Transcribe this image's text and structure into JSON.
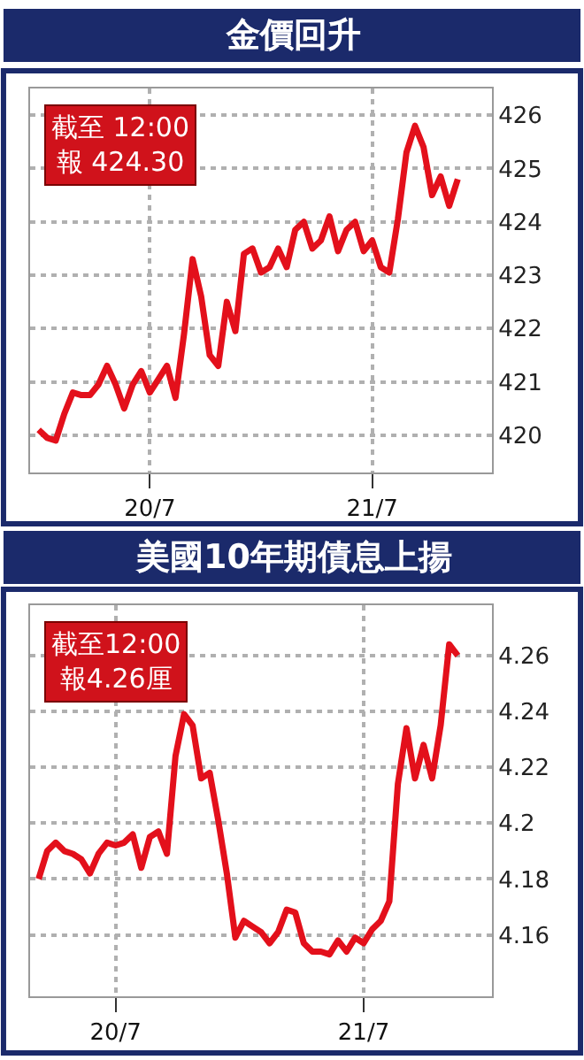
{
  "chart_data": [
    {
      "type": "line",
      "title": "金價回升",
      "annotations": [
        "截至 12:00\n報 424.30"
      ],
      "grid": true,
      "legend": false,
      "marker": "none",
      "line_style": "solid",
      "categories": [
        null,
        null,
        null,
        null,
        null,
        null,
        null,
        null,
        null,
        null,
        null,
        null,
        null,
        "20/7",
        null,
        null,
        null,
        null,
        null,
        null,
        null,
        null,
        null,
        null,
        null,
        null,
        null,
        null,
        null,
        null,
        null,
        null,
        null,
        null,
        null,
        null,
        null,
        null,
        null,
        "21/7",
        null,
        null,
        null,
        null,
        null,
        null,
        null,
        null,
        null,
        null
      ],
      "ylim": [
        419.3,
        426.5
      ],
      "yticks": [
        420,
        421,
        422,
        423,
        424,
        425,
        426
      ],
      "series": [
        {
          "color": "#e3101b",
          "values": [
            420.1,
            419.95,
            419.9,
            420.4,
            420.8,
            420.75,
            420.75,
            420.95,
            421.3,
            420.95,
            420.5,
            420.95,
            421.2,
            420.8,
            421.05,
            421.3,
            420.7,
            421.9,
            423.3,
            422.6,
            421.5,
            421.3,
            422.5,
            421.95,
            423.4,
            423.5,
            423.05,
            423.15,
            423.5,
            423.15,
            423.85,
            424.0,
            423.5,
            423.65,
            424.1,
            423.45,
            423.85,
            424.0,
            423.45,
            423.65,
            423.15,
            423.05,
            424.05,
            425.3,
            425.8,
            425.4,
            424.5,
            424.85,
            424.3,
            424.8
          ]
        }
      ]
    },
    {
      "type": "line",
      "title": "美國10年期債息上揚",
      "annotations": [
        "截至12:00\n報4.26厘"
      ],
      "grid": true,
      "legend": false,
      "marker": "none",
      "line_style": "solid",
      "categories": [
        null,
        null,
        null,
        null,
        null,
        null,
        null,
        null,
        null,
        "20/7",
        null,
        null,
        null,
        null,
        null,
        null,
        null,
        null,
        null,
        null,
        null,
        null,
        null,
        null,
        null,
        null,
        null,
        null,
        null,
        null,
        null,
        null,
        null,
        null,
        null,
        null,
        null,
        null,
        "21/7",
        null,
        null,
        null,
        null,
        null,
        null,
        null,
        null,
        null,
        null,
        null
      ],
      "ylim": [
        4.138,
        4.278
      ],
      "yticks": [
        4.16,
        4.18,
        4.2,
        4.22,
        4.24,
        4.26
      ],
      "series": [
        {
          "color": "#e3101b",
          "values": [
            4.18,
            4.19,
            4.193,
            4.19,
            4.189,
            4.187,
            4.182,
            4.189,
            4.193,
            4.192,
            4.193,
            4.196,
            4.184,
            4.195,
            4.197,
            4.189,
            4.224,
            4.239,
            4.235,
            4.216,
            4.218,
            4.201,
            4.182,
            4.159,
            4.165,
            4.163,
            4.161,
            4.157,
            4.161,
            4.169,
            4.168,
            4.157,
            4.154,
            4.154,
            4.153,
            4.158,
            4.154,
            4.159,
            4.157,
            4.162,
            4.165,
            4.172,
            4.214,
            4.234,
            4.216,
            4.228,
            4.216,
            4.235,
            4.264,
            4.26
          ]
        }
      ]
    }
  ]
}
